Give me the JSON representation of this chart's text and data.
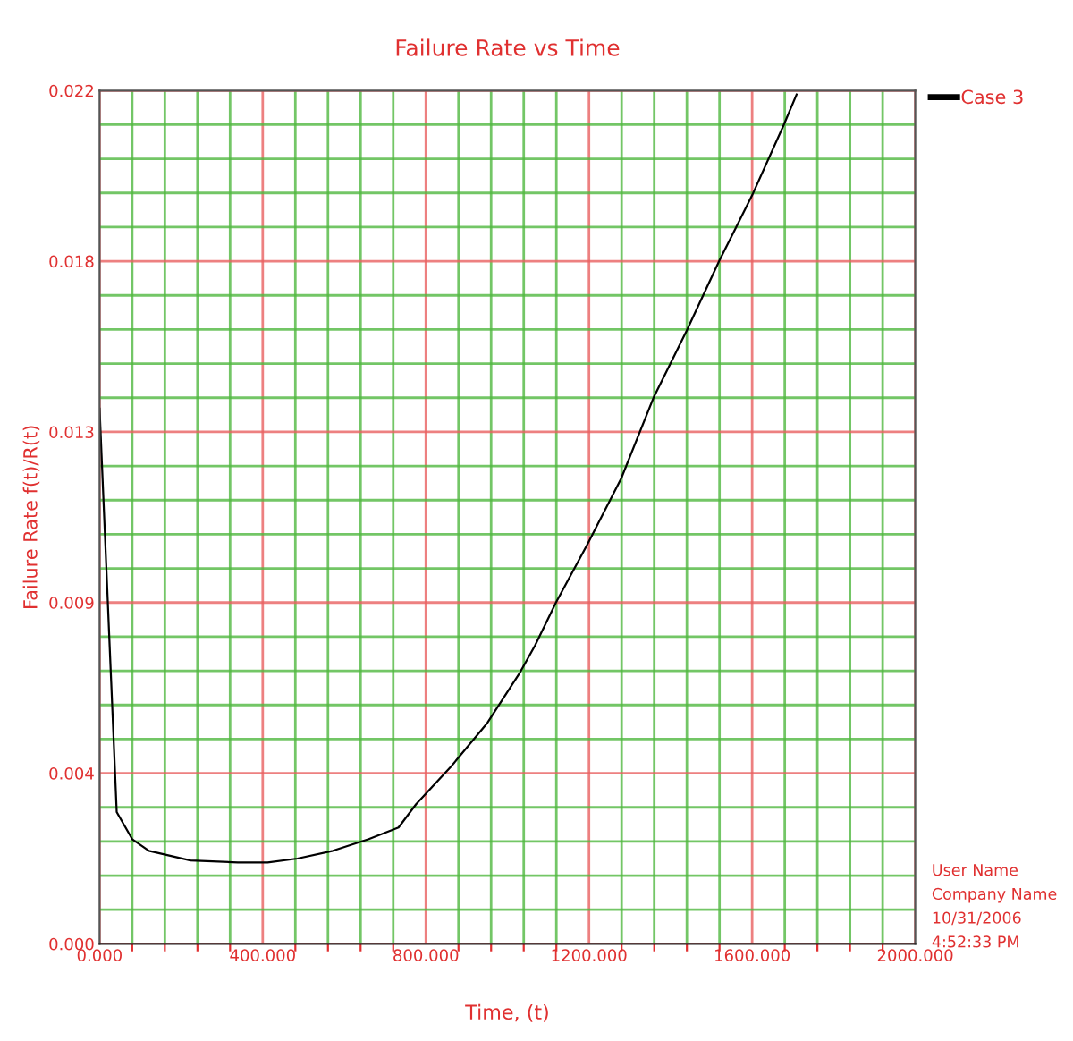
{
  "chart_data": {
    "type": "line",
    "title": "Failure Rate vs Time",
    "xlabel": "Time, (t)",
    "ylabel": "Failure Rate f(t)/R(t)",
    "x": [
      0,
      42,
      80,
      121,
      223,
      339,
      412,
      485,
      572,
      660,
      733,
      776,
      864,
      951,
      1031,
      1068,
      1119,
      1196,
      1279,
      1359,
      1439,
      1519,
      1600,
      1677,
      1709
    ],
    "series": [
      {
        "name": "Case 3",
        "color": "#000000",
        "values": [
          0.0138,
          0.0034,
          0.0027,
          0.0024,
          0.00215,
          0.0021,
          0.0021,
          0.0022,
          0.0024,
          0.0027,
          0.003,
          0.0036,
          0.0046,
          0.0057,
          0.007,
          0.0077,
          0.0088,
          0.0103,
          0.012,
          0.0141,
          0.0158,
          0.0176,
          0.0193,
          0.0211,
          0.0219
        ]
      }
    ],
    "xlim": [
      0,
      2000
    ],
    "xticks": [
      {
        "value": 0,
        "label": "0.000"
      },
      {
        "value": 80,
        "label": null
      },
      {
        "value": 160,
        "label": null
      },
      {
        "value": 240,
        "label": null
      },
      {
        "value": 320,
        "label": null
      },
      {
        "value": 400,
        "label": "400.000"
      },
      {
        "value": 480,
        "label": null
      },
      {
        "value": 560,
        "label": null
      },
      {
        "value": 640,
        "label": null
      },
      {
        "value": 720,
        "label": null
      },
      {
        "value": 800,
        "label": "800.000"
      },
      {
        "value": 880,
        "label": null
      },
      {
        "value": 960,
        "label": null
      },
      {
        "value": 1040,
        "label": null
      },
      {
        "value": 1120,
        "label": null
      },
      {
        "value": 1200,
        "label": "1200.000"
      },
      {
        "value": 1280,
        "label": null
      },
      {
        "value": 1360,
        "label": null
      },
      {
        "value": 1440,
        "label": null
      },
      {
        "value": 1520,
        "label": null
      },
      {
        "value": 1600,
        "label": "1600.000"
      },
      {
        "value": 1680,
        "label": null
      },
      {
        "value": 1760,
        "label": null
      },
      {
        "value": 1840,
        "label": null
      },
      {
        "value": 1920,
        "label": null
      },
      {
        "value": 2000,
        "label": "2000.000"
      }
    ],
    "ylim": [
      0,
      0.022
    ],
    "yticks": [
      {
        "value": 0,
        "label": "0.000"
      },
      {
        "value": 0.00088,
        "label": null
      },
      {
        "value": 0.00176,
        "label": null
      },
      {
        "value": 0.00264,
        "label": null
      },
      {
        "value": 0.00352,
        "label": null
      },
      {
        "value": 0.0044,
        "label": "0.004"
      },
      {
        "value": 0.00528,
        "label": null
      },
      {
        "value": 0.00616,
        "label": null
      },
      {
        "value": 0.00704,
        "label": null
      },
      {
        "value": 0.00792,
        "label": null
      },
      {
        "value": 0.0088,
        "label": "0.009"
      },
      {
        "value": 0.00968,
        "label": null
      },
      {
        "value": 0.01056,
        "label": null
      },
      {
        "value": 0.01144,
        "label": null
      },
      {
        "value": 0.01232,
        "label": null
      },
      {
        "value": 0.0132,
        "label": "0.013"
      },
      {
        "value": 0.01408,
        "label": null
      },
      {
        "value": 0.01496,
        "label": null
      },
      {
        "value": 0.01584,
        "label": null
      },
      {
        "value": 0.01672,
        "label": null
      },
      {
        "value": 0.0176,
        "label": "0.018"
      },
      {
        "value": 0.01848,
        "label": null
      },
      {
        "value": 0.01936,
        "label": null
      },
      {
        "value": 0.02024,
        "label": null
      },
      {
        "value": 0.02112,
        "label": null
      },
      {
        "value": 0.022,
        "label": "0.022"
      }
    ],
    "grid": true,
    "legend": "top right",
    "marker": "none",
    "line_style": "solid",
    "annotations": [
      "User Name",
      "Company Name",
      "10/31/2006",
      "4:52:33 PM"
    ]
  }
}
